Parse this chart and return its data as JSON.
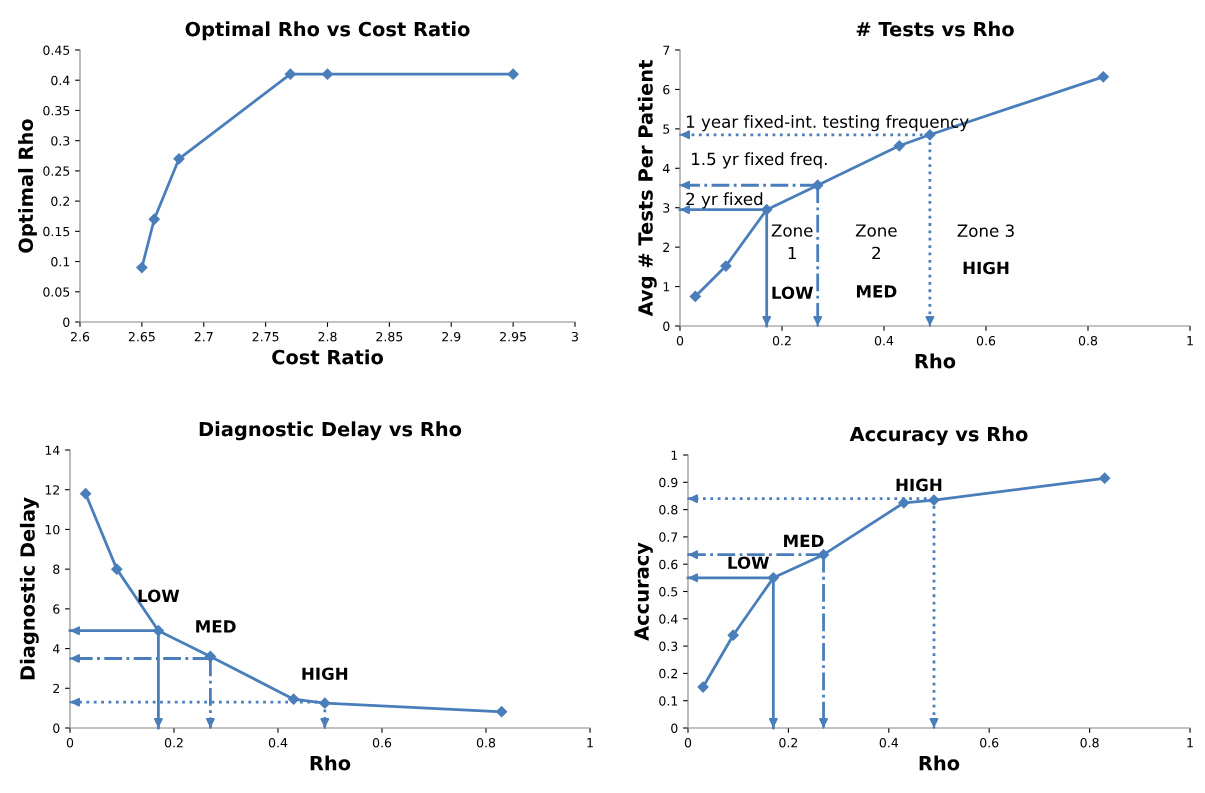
{
  "chart_data": [
    {
      "type": "line",
      "title": "Optimal Rho vs Cost Ratio",
      "xlabel": "Cost Ratio",
      "ylabel": "Optimal Rho",
      "marker": "diamond",
      "line_style": "solid",
      "xlim": [
        2.6,
        3
      ],
      "xticks": [
        2.6,
        2.65,
        2.7,
        2.75,
        2.8,
        2.85,
        2.9,
        2.95,
        3
      ],
      "ylim": [
        0,
        0.45
      ],
      "yticks": [
        0,
        0.05,
        0.1,
        0.15,
        0.2,
        0.25,
        0.3,
        0.35,
        0.4,
        0.45
      ],
      "x": [
        2.65,
        2.66,
        2.68,
        2.77,
        2.8,
        2.95
      ],
      "series": [
        {
          "color": "#4a7ebb",
          "values": [
            0.09,
            0.17,
            0.27,
            0.41,
            0.41,
            0.41
          ]
        }
      ]
    },
    {
      "type": "line",
      "title": "# Tests vs Rho",
      "xlabel": "Rho",
      "ylabel": "Avg # Tests Per Patient",
      "marker": "diamond",
      "line_style": "solid",
      "xlim": [
        0,
        1
      ],
      "xticks": [
        0,
        0.2,
        0.4,
        0.6,
        0.8,
        1
      ],
      "ylim": [
        0,
        7
      ],
      "yticks": [
        0,
        1,
        2,
        3,
        4,
        5,
        6,
        7
      ],
      "x": [
        0.03,
        0.09,
        0.17,
        0.27,
        0.43,
        0.49,
        0.83
      ],
      "series": [
        {
          "color": "#4a7ebb",
          "values": [
            0.75,
            1.52,
            2.95,
            3.57,
            4.57,
            4.85,
            6.32
          ]
        },
        {
          "color": "#4a7ebb",
          "x": [
            0.17,
            0
          ],
          "values": [
            2.95,
            2.95
          ],
          "marker": "none",
          "line_style": "solid"
        },
        {
          "color": "#4a7ebb",
          "x": [
            0.17,
            0.17
          ],
          "values": [
            2.95,
            0
          ],
          "marker": "none",
          "line_style": "solid"
        },
        {
          "color": "#4a7ebb",
          "x": [
            0.27,
            0
          ],
          "values": [
            3.57,
            3.57
          ],
          "marker": "none",
          "line_style": "dashdot"
        },
        {
          "color": "#4a7ebb",
          "x": [
            0.27,
            0.27
          ],
          "values": [
            3.57,
            0
          ],
          "marker": "none",
          "line_style": "dashdot"
        },
        {
          "color": "#4a7ebb",
          "x": [
            0.49,
            0
          ],
          "values": [
            4.85,
            4.85
          ],
          "marker": "none",
          "line_style": "dotted"
        },
        {
          "color": "#4a7ebb",
          "x": [
            0.49,
            0.49
          ],
          "values": [
            4.85,
            0
          ],
          "marker": "none",
          "line_style": "dotted"
        }
      ],
      "annotations": [
        "1 year fixed-int. testing frequency",
        "1.5 yr fixed freq.",
        "2 yr fixed",
        "Zone\n1",
        "LOW",
        "Zone\n2",
        "MED",
        "Zone 3",
        "HIGH"
      ]
    },
    {
      "type": "line",
      "title": "Diagnostic Delay vs Rho",
      "xlabel": "Rho",
      "ylabel": "Diagnostic Delay",
      "marker": "diamond",
      "line_style": "solid",
      "xlim": [
        0,
        1
      ],
      "xticks": [
        0,
        0.2,
        0.4,
        0.6,
        0.8,
        1
      ],
      "ylim": [
        0,
        14
      ],
      "yticks": [
        0,
        2,
        4,
        6,
        8,
        10,
        12,
        14
      ],
      "x": [
        0.03,
        0.09,
        0.17,
        0.27,
        0.43,
        0.49,
        0.83
      ],
      "series": [
        {
          "color": "#4a7ebb",
          "values": [
            11.8,
            8.0,
            4.9,
            3.6,
            1.45,
            1.25,
            0.82
          ]
        },
        {
          "color": "#4a7ebb",
          "x": [
            0.17,
            0
          ],
          "values": [
            4.9,
            4.9
          ],
          "marker": "none",
          "line_style": "solid"
        },
        {
          "color": "#4a7ebb",
          "x": [
            0.17,
            0.17
          ],
          "values": [
            4.9,
            0
          ],
          "marker": "none",
          "line_style": "solid"
        },
        {
          "color": "#4a7ebb",
          "x": [
            0.27,
            0
          ],
          "values": [
            3.5,
            3.5
          ],
          "marker": "none",
          "line_style": "dashdot"
        },
        {
          "color": "#4a7ebb",
          "x": [
            0.27,
            0.27
          ],
          "values": [
            3.5,
            0
          ],
          "marker": "none",
          "line_style": "dashdot"
        },
        {
          "color": "#4a7ebb",
          "x": [
            0.49,
            0
          ],
          "values": [
            1.3,
            1.3
          ],
          "marker": "none",
          "line_style": "dotted"
        },
        {
          "color": "#4a7ebb",
          "x": [
            0.49,
            0.49
          ],
          "values": [
            1.3,
            0
          ],
          "marker": "none",
          "line_style": "dotted"
        }
      ],
      "annotations": [
        "LOW",
        "MED",
        "HIGH"
      ]
    },
    {
      "type": "line",
      "title": "Accuracy vs Rho",
      "xlabel": "Rho",
      "ylabel": "Accuracy",
      "marker": "diamond",
      "line_style": "solid",
      "xlim": [
        0,
        1
      ],
      "xticks": [
        0,
        0.2,
        0.4,
        0.6,
        0.8,
        1
      ],
      "ylim": [
        0,
        1
      ],
      "yticks": [
        0,
        0.1,
        0.2,
        0.3,
        0.4,
        0.5,
        0.6,
        0.7,
        0.8,
        0.9,
        1
      ],
      "x": [
        0.03,
        0.09,
        0.17,
        0.27,
        0.43,
        0.49,
        0.83
      ],
      "series": [
        {
          "color": "#4a7ebb",
          "values": [
            0.15,
            0.34,
            0.55,
            0.635,
            0.825,
            0.835,
            0.915
          ]
        },
        {
          "color": "#4a7ebb",
          "x": [
            0.17,
            0
          ],
          "values": [
            0.55,
            0.55
          ],
          "marker": "none",
          "line_style": "solid"
        },
        {
          "color": "#4a7ebb",
          "x": [
            0.17,
            0.17
          ],
          "values": [
            0.55,
            0
          ],
          "marker": "none",
          "line_style": "solid"
        },
        {
          "color": "#4a7ebb",
          "x": [
            0.27,
            0
          ],
          "values": [
            0.635,
            0.635
          ],
          "marker": "none",
          "line_style": "dashdot"
        },
        {
          "color": "#4a7ebb",
          "x": [
            0.27,
            0.27
          ],
          "values": [
            0.635,
            0
          ],
          "marker": "none",
          "line_style": "dashdot"
        },
        {
          "color": "#4a7ebb",
          "x": [
            0.49,
            0
          ],
          "values": [
            0.84,
            0.84
          ],
          "marker": "none",
          "line_style": "dotted"
        },
        {
          "color": "#4a7ebb",
          "x": [
            0.49,
            0.49
          ],
          "values": [
            0.84,
            0
          ],
          "marker": "none",
          "line_style": "dotted"
        }
      ],
      "annotations": [
        "LOW",
        "MED",
        "HIGH"
      ]
    }
  ]
}
